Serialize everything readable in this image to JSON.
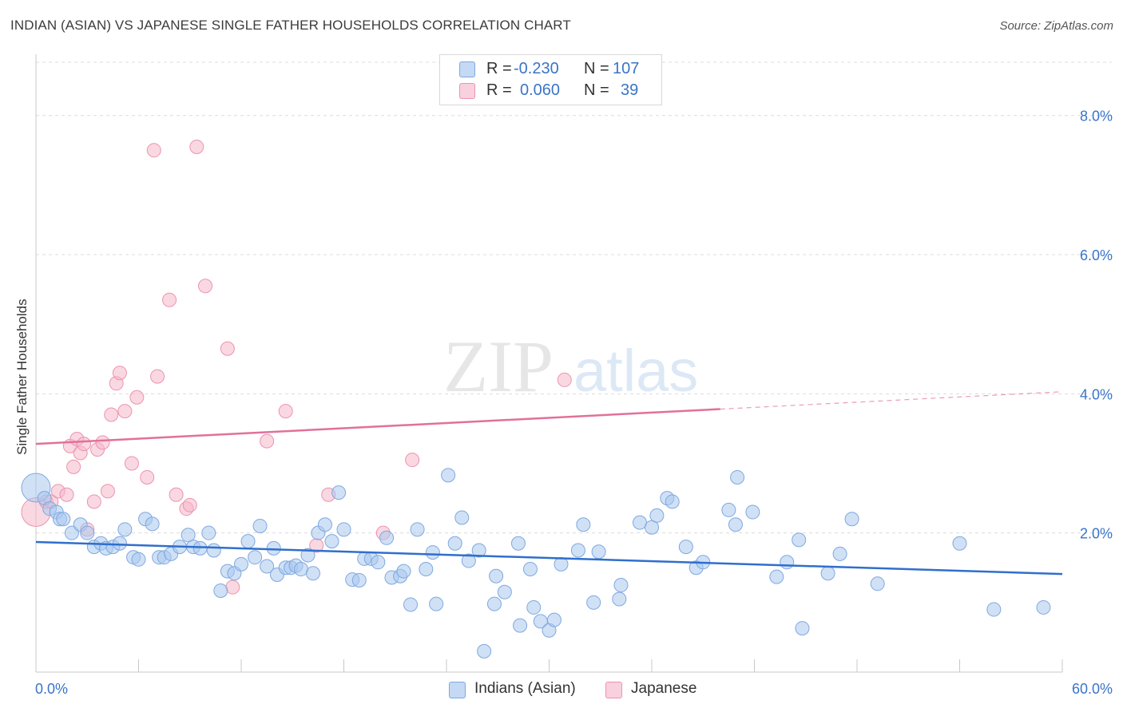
{
  "title": "INDIAN (ASIAN) VS JAPANESE SINGLE FATHER HOUSEHOLDS CORRELATION CHART",
  "source": "Source: ZipAtlas.com",
  "watermark": {
    "zip": "ZIP",
    "atlas": "atlas"
  },
  "legend": {
    "rows": [
      {
        "r_label": "R =",
        "r_value": "-0.230",
        "n_label": "N =",
        "n_value": "107",
        "color": "#a9c8ef"
      },
      {
        "r_label": "R =",
        "r_value": "0.060",
        "n_label": "N =",
        "n_value": "39",
        "color": "#f6b8cb"
      }
    ]
  },
  "bottom_legend": [
    {
      "label": "Indians (Asian)",
      "color": "#a9c8ef"
    },
    {
      "label": "Japanese",
      "color": "#f6b8cb"
    }
  ],
  "chart_data": {
    "type": "scatter",
    "title": "INDIAN (ASIAN) VS JAPANESE SINGLE FATHER HOUSEHOLDS CORRELATION CHART",
    "xlabel": "",
    "ylabel": "Single Father Households",
    "xlim": [
      0,
      60
    ],
    "ylim": [
      0,
      8.8
    ],
    "x_tick_labels": [
      "0.0%",
      "60.0%"
    ],
    "y_ticks": [
      2,
      4,
      6,
      8
    ],
    "y_tick_labels": [
      "2.0%",
      "4.0%",
      "6.0%",
      "8.0%"
    ],
    "grid": true,
    "legend_position": "top-center",
    "series": [
      {
        "name": "Indians (Asian)",
        "color": "#a9c8ef",
        "stroke": "#7fa8e0",
        "trend": {
          "x": [
            0,
            60
          ],
          "y": [
            1.87,
            1.41
          ],
          "color": "#2f6fcc"
        },
        "points": [
          [
            0,
            2.65
          ],
          [
            0.5,
            2.5
          ],
          [
            0.8,
            2.35
          ],
          [
            1.2,
            2.3
          ],
          [
            1.4,
            2.2
          ],
          [
            1.6,
            2.2
          ],
          [
            2.1,
            2.0
          ],
          [
            2.6,
            2.12
          ],
          [
            3.0,
            2.0
          ],
          [
            3.4,
            1.8
          ],
          [
            3.8,
            1.85
          ],
          [
            4.1,
            1.78
          ],
          [
            4.5,
            1.8
          ],
          [
            4.9,
            1.85
          ],
          [
            5.2,
            2.05
          ],
          [
            5.7,
            1.65
          ],
          [
            6.0,
            1.62
          ],
          [
            6.4,
            2.2
          ],
          [
            6.8,
            2.13
          ],
          [
            7.2,
            1.65
          ],
          [
            7.5,
            1.65
          ],
          [
            7.9,
            1.7
          ],
          [
            8.4,
            1.8
          ],
          [
            8.9,
            1.97
          ],
          [
            9.2,
            1.8
          ],
          [
            9.6,
            1.78
          ],
          [
            10.1,
            2.0
          ],
          [
            10.4,
            1.75
          ],
          [
            10.8,
            1.17
          ],
          [
            11.2,
            1.45
          ],
          [
            11.6,
            1.42
          ],
          [
            12.0,
            1.55
          ],
          [
            12.4,
            1.88
          ],
          [
            12.8,
            1.65
          ],
          [
            13.1,
            2.1
          ],
          [
            13.5,
            1.52
          ],
          [
            13.9,
            1.78
          ],
          [
            14.1,
            1.4
          ],
          [
            14.6,
            1.5
          ],
          [
            14.9,
            1.5
          ],
          [
            15.2,
            1.53
          ],
          [
            15.5,
            1.48
          ],
          [
            15.9,
            1.68
          ],
          [
            16.2,
            1.42
          ],
          [
            16.5,
            2.0
          ],
          [
            16.9,
            2.12
          ],
          [
            17.3,
            1.88
          ],
          [
            17.7,
            2.58
          ],
          [
            18.0,
            2.05
          ],
          [
            18.5,
            1.33
          ],
          [
            18.9,
            1.32
          ],
          [
            19.2,
            1.63
          ],
          [
            19.6,
            1.63
          ],
          [
            20.0,
            1.58
          ],
          [
            20.5,
            1.93
          ],
          [
            20.8,
            1.36
          ],
          [
            21.3,
            1.38
          ],
          [
            21.5,
            1.45
          ],
          [
            21.9,
            0.97
          ],
          [
            22.3,
            2.05
          ],
          [
            22.8,
            1.48
          ],
          [
            23.2,
            1.72
          ],
          [
            23.4,
            0.98
          ],
          [
            24.1,
            2.83
          ],
          [
            24.5,
            1.85
          ],
          [
            24.9,
            2.22
          ],
          [
            25.3,
            1.6
          ],
          [
            25.9,
            1.75
          ],
          [
            26.2,
            0.3
          ],
          [
            26.8,
            0.98
          ],
          [
            26.9,
            1.38
          ],
          [
            27.4,
            1.15
          ],
          [
            28.2,
            1.85
          ],
          [
            28.3,
            0.67
          ],
          [
            28.9,
            1.48
          ],
          [
            29.1,
            0.93
          ],
          [
            29.5,
            0.73
          ],
          [
            30.0,
            0.6
          ],
          [
            30.3,
            0.75
          ],
          [
            30.7,
            1.55
          ],
          [
            31.7,
            1.75
          ],
          [
            32.0,
            2.12
          ],
          [
            32.6,
            1.0
          ],
          [
            32.9,
            1.73
          ],
          [
            34.1,
            1.05
          ],
          [
            34.2,
            1.25
          ],
          [
            35.3,
            2.15
          ],
          [
            36.0,
            2.08
          ],
          [
            36.3,
            2.25
          ],
          [
            36.9,
            2.5
          ],
          [
            37.2,
            2.45
          ],
          [
            38.0,
            1.8
          ],
          [
            38.6,
            1.5
          ],
          [
            39.0,
            1.58
          ],
          [
            40.5,
            2.33
          ],
          [
            40.9,
            2.12
          ],
          [
            41.0,
            2.8
          ],
          [
            41.9,
            2.3
          ],
          [
            43.3,
            1.37
          ],
          [
            43.9,
            1.58
          ],
          [
            44.6,
            1.9
          ],
          [
            44.8,
            0.63
          ],
          [
            46.3,
            1.42
          ],
          [
            47.0,
            1.7
          ],
          [
            47.7,
            2.2
          ],
          [
            49.2,
            1.27
          ],
          [
            54.0,
            1.85
          ],
          [
            56.0,
            0.9
          ],
          [
            58.9,
            0.93
          ]
        ]
      },
      {
        "name": "Japanese",
        "color": "#f6b8cb",
        "stroke": "#ec93b0",
        "trend": {
          "x": [
            0,
            40
          ],
          "y": [
            3.28,
            3.78
          ],
          "dashed_to": [
            60,
            4.03
          ],
          "color": "#e2709a"
        },
        "points": [
          [
            0,
            2.3
          ],
          [
            0.6,
            2.45
          ],
          [
            0.9,
            2.45
          ],
          [
            1.3,
            2.6
          ],
          [
            1.8,
            2.55
          ],
          [
            2.0,
            3.25
          ],
          [
            2.2,
            2.95
          ],
          [
            2.4,
            3.35
          ],
          [
            2.6,
            3.15
          ],
          [
            2.8,
            3.28
          ],
          [
            3.0,
            2.05
          ],
          [
            3.4,
            2.45
          ],
          [
            3.6,
            3.2
          ],
          [
            3.9,
            3.3
          ],
          [
            4.2,
            2.6
          ],
          [
            4.4,
            3.7
          ],
          [
            4.7,
            4.15
          ],
          [
            4.9,
            4.3
          ],
          [
            5.2,
            3.75
          ],
          [
            5.6,
            3.0
          ],
          [
            5.9,
            3.95
          ],
          [
            6.5,
            2.8
          ],
          [
            6.9,
            7.5
          ],
          [
            7.1,
            4.25
          ],
          [
            7.8,
            5.35
          ],
          [
            8.2,
            2.55
          ],
          [
            8.8,
            2.35
          ],
          [
            9.0,
            2.4
          ],
          [
            9.4,
            7.55
          ],
          [
            9.9,
            5.55
          ],
          [
            11.2,
            4.65
          ],
          [
            11.5,
            1.22
          ],
          [
            13.5,
            3.32
          ],
          [
            14.6,
            3.75
          ],
          [
            16.4,
            1.82
          ],
          [
            17.1,
            2.55
          ],
          [
            20.3,
            2.0
          ],
          [
            22.0,
            3.05
          ],
          [
            30.9,
            4.2
          ]
        ]
      }
    ]
  }
}
